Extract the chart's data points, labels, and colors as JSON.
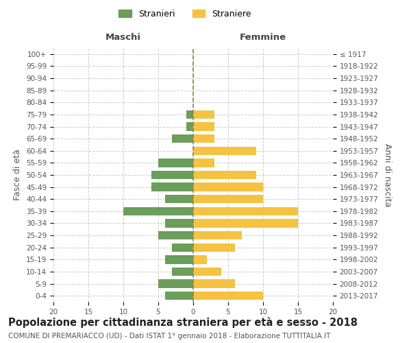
{
  "age_groups_bottom_to_top": [
    "0-4",
    "5-9",
    "10-14",
    "15-19",
    "20-24",
    "25-29",
    "30-34",
    "35-39",
    "40-44",
    "45-49",
    "50-54",
    "55-59",
    "60-64",
    "65-69",
    "70-74",
    "75-79",
    "80-84",
    "85-89",
    "90-94",
    "95-99",
    "100+"
  ],
  "birth_years_bottom_to_top": [
    "2013-2017",
    "2008-2012",
    "2003-2007",
    "1998-2002",
    "1993-1997",
    "1988-1992",
    "1983-1987",
    "1978-1982",
    "1973-1977",
    "1968-1972",
    "1963-1967",
    "1958-1962",
    "1953-1957",
    "1948-1952",
    "1943-1947",
    "1938-1942",
    "1933-1937",
    "1928-1932",
    "1923-1927",
    "1918-1922",
    "≤ 1917"
  ],
  "maschi_bottom_to_top": [
    4,
    5,
    3,
    4,
    3,
    5,
    4,
    10,
    4,
    6,
    6,
    5,
    0,
    3,
    1,
    1,
    0,
    0,
    0,
    0,
    0
  ],
  "femmine_bottom_to_top": [
    10,
    6,
    4,
    2,
    6,
    7,
    15,
    15,
    10,
    10,
    9,
    3,
    9,
    3,
    3,
    3,
    0,
    0,
    0,
    0,
    0
  ],
  "maschi_color": "#6a9e5a",
  "femmine_color": "#f5c242",
  "background_color": "#ffffff",
  "grid_color": "#cccccc",
  "title": "Popolazione per cittadinanza straniera per età e sesso - 2018",
  "subtitle": "COMUNE DI PREMARIACCO (UD) - Dati ISTAT 1° gennaio 2018 - Elaborazione TUTTITALIA.IT",
  "xlabel_left": "Maschi",
  "xlabel_right": "Femmine",
  "ylabel_left": "Fasce di età",
  "ylabel_right": "Anni di nascita",
  "legend_maschi": "Stranieri",
  "legend_femmine": "Straniere",
  "xlim": 20,
  "bar_height": 0.7,
  "dashed_line_color": "#888844",
  "title_fontsize": 10.5,
  "subtitle_fontsize": 7.5,
  "axis_label_fontsize": 9,
  "tick_fontsize": 7.5,
  "header_fontsize": 9.5
}
